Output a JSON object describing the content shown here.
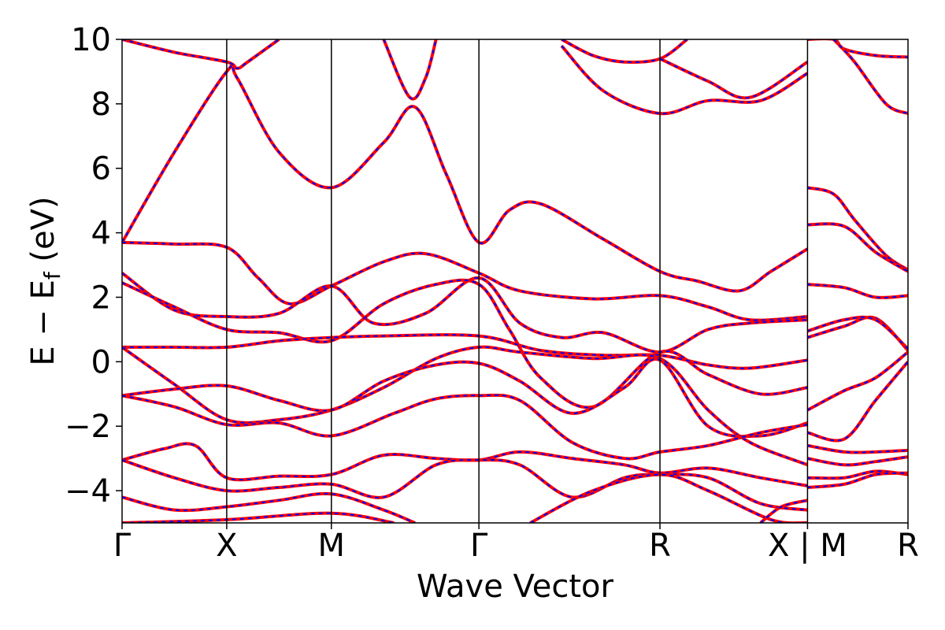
{
  "chart_data": {
    "type": "line",
    "title": "",
    "xlabel": "Wave Vector",
    "ylabel_main": "E − E",
    "ylabel_sub": "f",
    "ylabel_unit": " (eV)",
    "ylim": [
      -5,
      10
    ],
    "yticks": [
      {
        "value": 10,
        "label": "10"
      },
      {
        "value": 8,
        "label": "8"
      },
      {
        "value": 6,
        "label": "6"
      },
      {
        "value": 4,
        "label": "4"
      },
      {
        "value": 2,
        "label": "2"
      },
      {
        "value": 0,
        "label": "0"
      },
      {
        "value": -2,
        "label": "−2"
      },
      {
        "value": -4,
        "label": "−4"
      }
    ],
    "xlim": [
      0,
      7.51
    ],
    "kpoints": [
      {
        "position": 0.0,
        "label": "Γ"
      },
      {
        "position": 1.0,
        "label": "X"
      },
      {
        "position": 2.0,
        "label": "M"
      },
      {
        "position": 3.41,
        "label": "Γ"
      },
      {
        "position": 5.14,
        "label": "R"
      },
      {
        "position": 6.55,
        "label": "X | M"
      },
      {
        "position": 7.51,
        "label": "R"
      }
    ],
    "grid": false,
    "series_colors": {
      "primary": "#ff0000",
      "overlay": "#0000ff"
    },
    "bands": [
      [
        [
          0,
          3.7
        ],
        [
          0.5,
          6.5
        ],
        [
          1.0,
          9.0
        ],
        [
          1.1,
          8.8
        ],
        [
          1.5,
          6.5
        ],
        [
          2.0,
          5.4
        ],
        [
          2.5,
          6.8
        ],
        [
          2.8,
          7.9
        ],
        [
          3.1,
          5.8
        ],
        [
          3.41,
          3.7
        ],
        [
          3.7,
          4.7
        ],
        [
          4.0,
          4.9
        ],
        [
          4.6,
          3.8
        ],
        [
          5.14,
          2.8
        ],
        [
          5.5,
          2.5
        ],
        [
          5.9,
          2.2
        ],
        [
          6.2,
          2.8
        ],
        [
          6.55,
          3.5
        ]
      ],
      [
        [
          0,
          3.7
        ],
        [
          0.5,
          3.65
        ],
        [
          1.0,
          3.55
        ],
        [
          1.3,
          2.6
        ],
        [
          1.6,
          1.8
        ],
        [
          2.0,
          2.35
        ],
        [
          2.5,
          3.1
        ],
        [
          2.9,
          3.35
        ],
        [
          3.41,
          2.75
        ],
        [
          3.8,
          2.2
        ],
        [
          4.5,
          1.95
        ],
        [
          5.14,
          2.05
        ],
        [
          5.6,
          1.7
        ],
        [
          6.0,
          1.3
        ],
        [
          6.55,
          1.4
        ]
      ],
      [
        [
          0,
          2.75
        ],
        [
          0.5,
          1.6
        ],
        [
          1.0,
          1.4
        ],
        [
          1.5,
          1.5
        ],
        [
          2.0,
          2.35
        ],
        [
          2.4,
          1.2
        ],
        [
          2.9,
          1.5
        ],
        [
          3.41,
          2.6
        ],
        [
          3.8,
          1.2
        ],
        [
          4.2,
          0.75
        ],
        [
          4.6,
          0.9
        ],
        [
          5.14,
          0.3
        ],
        [
          5.6,
          1.0
        ],
        [
          6.0,
          1.2
        ],
        [
          6.55,
          1.3
        ]
      ],
      [
        [
          0,
          2.45
        ],
        [
          0.5,
          1.7
        ],
        [
          1.0,
          1.0
        ],
        [
          1.5,
          0.9
        ],
        [
          2.0,
          0.65
        ],
        [
          2.5,
          1.8
        ],
        [
          3.0,
          2.4
        ],
        [
          3.41,
          2.4
        ],
        [
          3.7,
          1.0
        ],
        [
          4.0,
          -0.5
        ],
        [
          4.5,
          -1.4
        ],
        [
          5.14,
          0.3
        ],
        [
          5.6,
          -0.4
        ],
        [
          6.1,
          -1.0
        ],
        [
          6.55,
          -0.8
        ]
      ],
      [
        [
          0,
          0.45
        ],
        [
          0.5,
          0.45
        ],
        [
          1.0,
          0.45
        ],
        [
          1.5,
          0.65
        ],
        [
          2.0,
          0.75
        ],
        [
          2.5,
          0.8
        ],
        [
          3.41,
          0.8
        ],
        [
          4.0,
          0.35
        ],
        [
          4.6,
          0.2
        ],
        [
          5.14,
          0.2
        ],
        [
          5.6,
          -0.1
        ],
        [
          6.0,
          -0.2
        ],
        [
          6.55,
          0.05
        ]
      ],
      [
        [
          0,
          0.45
        ],
        [
          0.5,
          -0.7
        ],
        [
          1.0,
          -1.8
        ],
        [
          1.5,
          -1.8
        ],
        [
          2.0,
          -1.5
        ],
        [
          2.5,
          -0.8
        ],
        [
          3.0,
          0.1
        ],
        [
          3.41,
          0.45
        ],
        [
          3.8,
          0.3
        ],
        [
          4.5,
          0.1
        ],
        [
          5.14,
          0.1
        ],
        [
          5.6,
          -1.5
        ],
        [
          6.0,
          -2.5
        ],
        [
          6.55,
          -3.2
        ]
      ],
      [
        [
          0,
          -1.05
        ],
        [
          0.5,
          -0.85
        ],
        [
          1.0,
          -0.75
        ],
        [
          1.5,
          -1.2
        ],
        [
          2.0,
          -1.5
        ],
        [
          2.5,
          -0.6
        ],
        [
          3.0,
          -0.1
        ],
        [
          3.41,
          -0.05
        ],
        [
          3.8,
          -0.6
        ],
        [
          4.3,
          -1.6
        ],
        [
          4.8,
          -0.8
        ],
        [
          5.14,
          0.05
        ],
        [
          5.6,
          -2.0
        ],
        [
          6.1,
          -2.3
        ],
        [
          6.55,
          -1.9
        ]
      ],
      [
        [
          0,
          -1.05
        ],
        [
          0.5,
          -1.4
        ],
        [
          1.0,
          -1.95
        ],
        [
          1.5,
          -1.9
        ],
        [
          2.0,
          -2.3
        ],
        [
          2.6,
          -1.6
        ],
        [
          3.0,
          -1.15
        ],
        [
          3.41,
          -1.05
        ],
        [
          3.8,
          -1.2
        ],
        [
          4.3,
          -2.5
        ],
        [
          4.8,
          -3.0
        ],
        [
          5.14,
          -2.8
        ],
        [
          5.6,
          -2.6
        ],
        [
          6.1,
          -2.2
        ],
        [
          6.55,
          -1.95
        ]
      ],
      [
        [
          0,
          -3.05
        ],
        [
          0.4,
          -2.7
        ],
        [
          0.7,
          -2.6
        ],
        [
          1.0,
          -3.6
        ],
        [
          1.5,
          -3.55
        ],
        [
          2.0,
          -3.5
        ],
        [
          2.5,
          -2.9
        ],
        [
          3.0,
          -3.0
        ],
        [
          3.41,
          -3.05
        ],
        [
          3.8,
          -2.8
        ],
        [
          4.3,
          -3.0
        ],
        [
          4.8,
          -3.2
        ],
        [
          5.14,
          -3.45
        ],
        [
          5.6,
          -3.3
        ],
        [
          6.1,
          -3.6
        ],
        [
          6.55,
          -3.85
        ]
      ],
      [
        [
          0,
          -3.05
        ],
        [
          0.5,
          -3.6
        ],
        [
          1.0,
          -4.0
        ],
        [
          1.5,
          -3.9
        ],
        [
          2.0,
          -3.8
        ],
        [
          2.5,
          -4.2
        ],
        [
          3.0,
          -3.2
        ],
        [
          3.41,
          -3.05
        ],
        [
          3.8,
          -3.2
        ],
        [
          4.3,
          -4.2
        ],
        [
          4.8,
          -3.6
        ],
        [
          5.14,
          -3.5
        ],
        [
          5.6,
          -3.6
        ],
        [
          6.1,
          -4.4
        ],
        [
          6.55,
          -4.6
        ]
      ],
      [
        [
          0,
          -4.2
        ],
        [
          0.5,
          -4.6
        ],
        [
          1.0,
          -4.5
        ],
        [
          1.5,
          -4.3
        ],
        [
          2.0,
          -4.1
        ],
        [
          2.5,
          -4.6
        ],
        [
          2.8,
          -5.0
        ]
      ],
      [
        [
          0,
          -5.0
        ],
        [
          1.0,
          -4.9
        ],
        [
          2.0,
          -4.7
        ],
        [
          2.6,
          -5.0
        ]
      ],
      [
        [
          3.9,
          -5.0
        ],
        [
          4.5,
          -4.0
        ],
        [
          5.14,
          -3.5
        ],
        [
          5.6,
          -4.0
        ],
        [
          6.2,
          -4.9
        ],
        [
          6.55,
          -5.0
        ]
      ],
      [
        [
          6.1,
          -5.0
        ],
        [
          6.3,
          -4.5
        ],
        [
          6.55,
          -4.3
        ]
      ],
      [
        [
          0,
          10.0
        ],
        [
          0.5,
          9.6
        ],
        [
          1.0,
          9.3
        ],
        [
          1.1,
          9.1
        ],
        [
          1.2,
          9.3
        ],
        [
          1.5,
          10.0
        ]
      ],
      [
        [
          2.5,
          10.0
        ],
        [
          2.75,
          8.2
        ],
        [
          2.9,
          8.8
        ],
        [
          3.0,
          10.0
        ]
      ],
      [
        [
          4.2,
          10.0
        ],
        [
          4.5,
          9.5
        ],
        [
          4.8,
          9.3
        ],
        [
          5.14,
          9.4
        ],
        [
          5.4,
          10.0
        ]
      ],
      [
        [
          4.2,
          9.8
        ],
        [
          4.6,
          8.4
        ],
        [
          5.14,
          7.7
        ],
        [
          5.6,
          8.1
        ],
        [
          6.1,
          8.1
        ],
        [
          6.55,
          8.95
        ]
      ],
      [
        [
          5.14,
          9.4
        ],
        [
          5.6,
          8.7
        ],
        [
          6.0,
          8.2
        ],
        [
          6.55,
          9.3
        ]
      ],
      [
        [
          6.55,
          5.4
        ],
        [
          6.8,
          5.2
        ],
        [
          7.0,
          4.4
        ],
        [
          7.3,
          3.3
        ],
        [
          7.51,
          2.85
        ]
      ],
      [
        [
          6.55,
          4.25
        ],
        [
          6.9,
          4.2
        ],
        [
          7.2,
          3.4
        ],
        [
          7.51,
          2.8
        ]
      ],
      [
        [
          6.55,
          2.4
        ],
        [
          6.9,
          2.3
        ],
        [
          7.2,
          2.0
        ],
        [
          7.51,
          2.05
        ]
      ],
      [
        [
          6.55,
          0.75
        ],
        [
          6.9,
          1.1
        ],
        [
          7.2,
          1.35
        ],
        [
          7.51,
          0.35
        ]
      ],
      [
        [
          6.55,
          0.95
        ],
        [
          6.9,
          1.3
        ],
        [
          7.2,
          1.3
        ],
        [
          7.51,
          0.4
        ]
      ],
      [
        [
          6.55,
          -1.5
        ],
        [
          6.9,
          -0.9
        ],
        [
          7.2,
          -0.5
        ],
        [
          7.51,
          0.3
        ]
      ],
      [
        [
          6.55,
          -2.2
        ],
        [
          6.9,
          -2.4
        ],
        [
          7.2,
          -1.2
        ],
        [
          7.51,
          0.0
        ]
      ],
      [
        [
          6.55,
          -2.6
        ],
        [
          6.9,
          -2.8
        ],
        [
          7.2,
          -2.8
        ],
        [
          7.51,
          -2.75
        ]
      ],
      [
        [
          6.55,
          -3.0
        ],
        [
          6.9,
          -3.2
        ],
        [
          7.2,
          -3.1
        ],
        [
          7.51,
          -2.95
        ]
      ],
      [
        [
          6.55,
          -3.6
        ],
        [
          6.9,
          -3.6
        ],
        [
          7.2,
          -3.4
        ],
        [
          7.51,
          -3.5
        ]
      ],
      [
        [
          6.55,
          -3.9
        ],
        [
          6.9,
          -3.8
        ],
        [
          7.2,
          -3.5
        ],
        [
          7.51,
          -3.45
        ]
      ],
      [
        [
          6.55,
          10.0
        ],
        [
          6.8,
          10.0
        ],
        [
          6.9,
          9.7
        ],
        [
          7.2,
          9.5
        ],
        [
          7.51,
          9.45
        ]
      ],
      [
        [
          6.8,
          10.0
        ],
        [
          7.0,
          9.3
        ],
        [
          7.3,
          8.0
        ],
        [
          7.51,
          7.7
        ]
      ]
    ]
  }
}
